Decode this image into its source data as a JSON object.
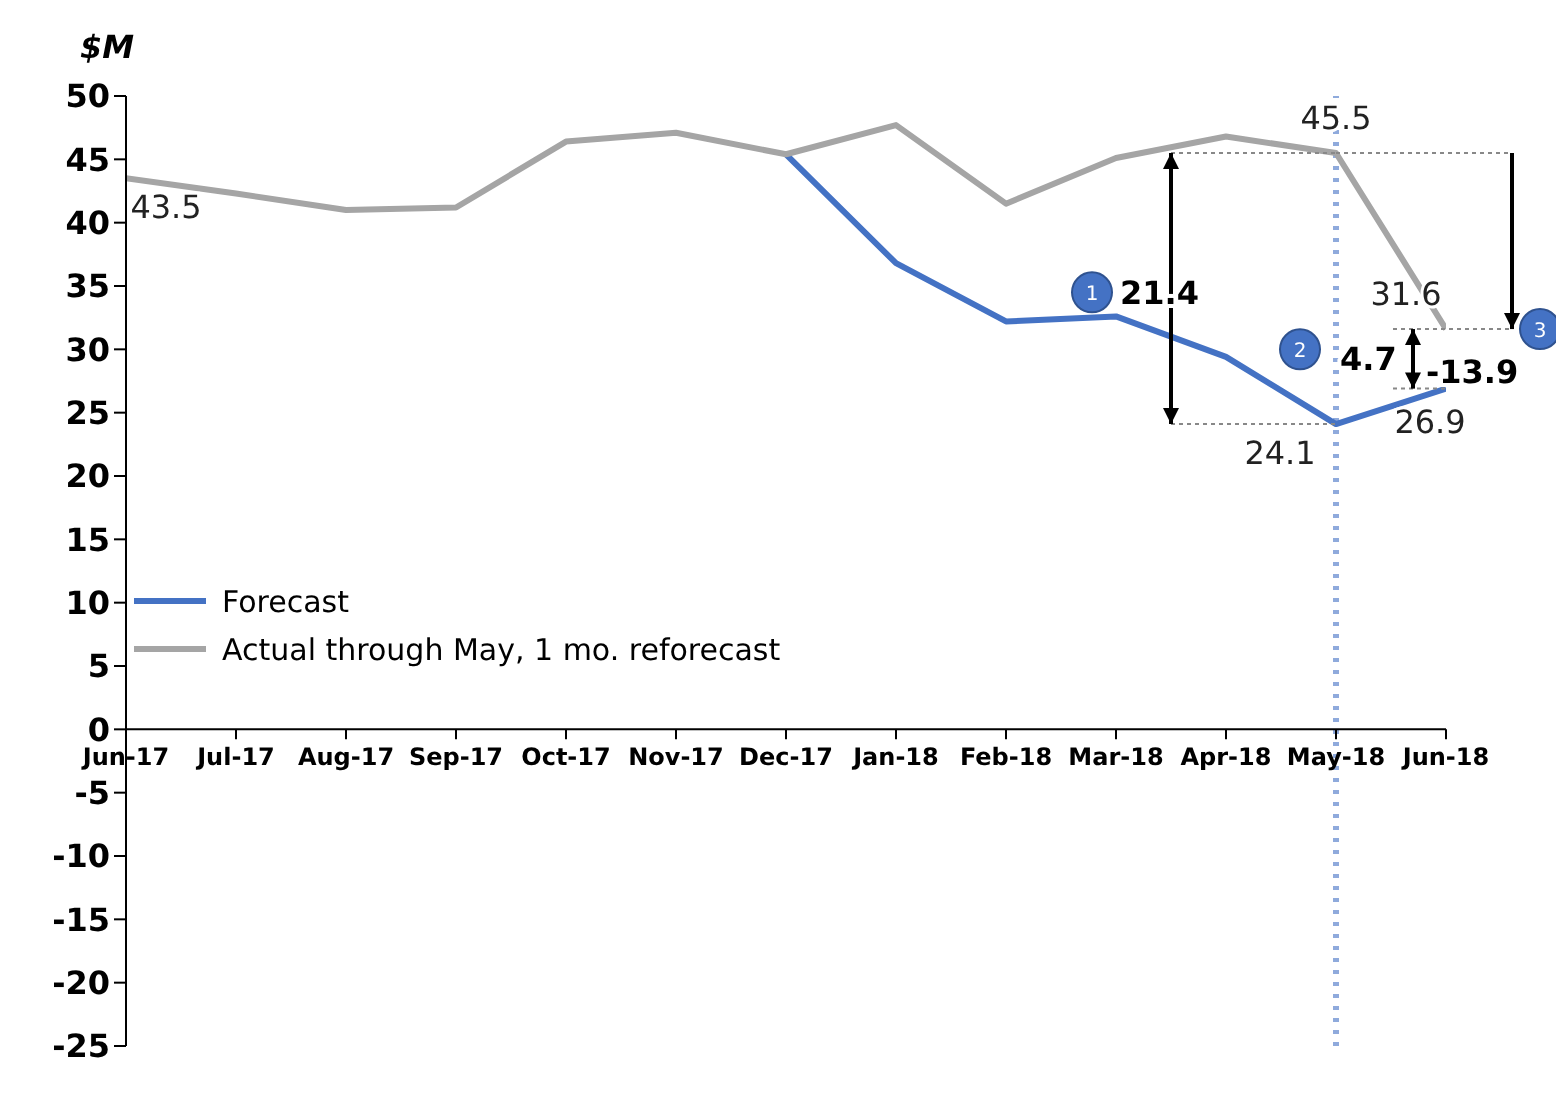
{
  "chart_data": {
    "type": "line",
    "ylabel": "$M",
    "categories": [
      "Jun-17",
      "Jul-17",
      "Aug-17",
      "Sep-17",
      "Oct-17",
      "Nov-17",
      "Dec-17",
      "Jan-18",
      "Feb-18",
      "Mar-18",
      "Apr-18",
      "May-18",
      "Jun-18"
    ],
    "series": [
      {
        "name": "Forecast",
        "color": "#4472c4",
        "values": [
          null,
          null,
          null,
          null,
          null,
          null,
          45.4,
          36.8,
          32.2,
          32.6,
          29.4,
          24.1,
          26.9
        ],
        "value_labels": [
          null,
          null,
          null,
          null,
          null,
          null,
          null,
          null,
          null,
          null,
          null,
          "24.1",
          "26.9"
        ]
      },
      {
        "name": "Actual through May, 1 mo. reforecast",
        "color": "#a5a5a5",
        "values": [
          43.5,
          42.3,
          41.0,
          41.2,
          46.4,
          47.1,
          45.4,
          47.7,
          41.5,
          45.1,
          46.8,
          45.5,
          31.6
        ],
        "value_labels": [
          "43.5",
          null,
          null,
          null,
          null,
          null,
          null,
          null,
          null,
          null,
          null,
          "45.5",
          "31.6"
        ]
      }
    ],
    "ylim": [
      -25,
      50
    ],
    "yticks": [
      -25,
      -20,
      -15,
      -10,
      -5,
      0,
      5,
      10,
      15,
      20,
      25,
      30,
      35,
      40,
      45,
      50
    ],
    "ref_lines": [
      {
        "axis": "x",
        "value": "May-18",
        "color": "#8faadc",
        "line_style": "dotted"
      }
    ],
    "annotations": [
      "1",
      "21.4",
      "2",
      {
        "text": "4.7",
        "x": "May-18",
        "y": 29.3
      },
      "3",
      "-13.9"
    ],
    "grid": false,
    "legend": "left",
    "marker": "none",
    "line_style": "solid"
  }
}
